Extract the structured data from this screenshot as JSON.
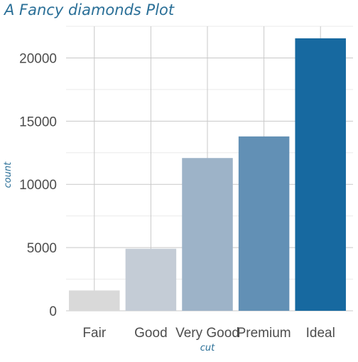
{
  "chart_data": {
    "type": "bar",
    "title": "A Fancy diamonds Plot",
    "xlabel": "cut",
    "ylabel": "count",
    "categories": [
      "Fair",
      "Good",
      "Very Good",
      "Premium",
      "Ideal"
    ],
    "values": [
      1610,
      4906,
      12082,
      13791,
      21551
    ],
    "ylim": [
      0,
      22500
    ],
    "yticks": [
      0,
      5000,
      10000,
      15000,
      20000
    ],
    "ytick_labels": [
      "0",
      "5000",
      "10000",
      "15000",
      "20000"
    ],
    "grid": true,
    "legend": "none",
    "colors": [
      "#d9d9d9",
      "#c4ccd6",
      "#9db3c8",
      "#6290b5",
      "#1769a0"
    ]
  },
  "colors": {
    "title": "#2a6f97",
    "grid_major": "#c8c8c8",
    "grid_minor": "#ebebeb",
    "tick_text": "#4d4d4d"
  }
}
